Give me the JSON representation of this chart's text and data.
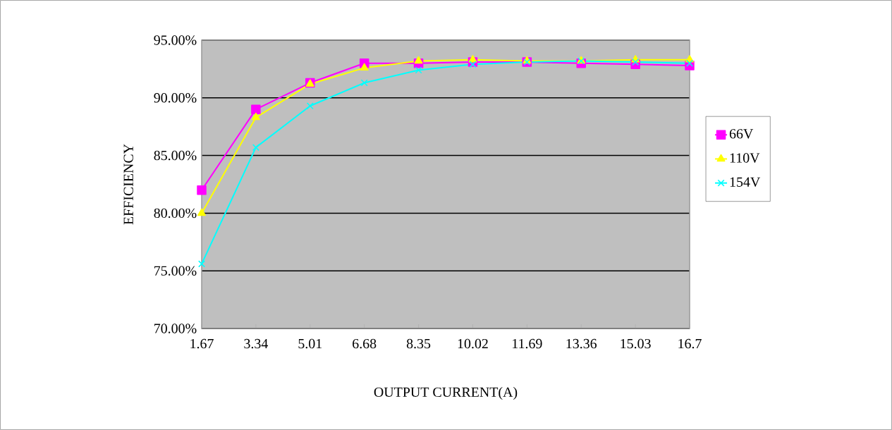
{
  "chart_data": {
    "type": "line",
    "xlabel": "OUTPUT CURRENT(A)",
    "ylabel": "EFFICIENCY",
    "categories": [
      "1.67",
      "3.34",
      "5.01",
      "6.68",
      "8.35",
      "10.02",
      "11.69",
      "13.36",
      "15.03",
      "16.7"
    ],
    "series": [
      {
        "name": "66V",
        "color": "#ff00ff",
        "marker": "square",
        "values": [
          82.0,
          89.0,
          91.3,
          93.0,
          93.0,
          93.1,
          93.1,
          93.0,
          92.9,
          92.8
        ]
      },
      {
        "name": "110V",
        "color": "#ffff00",
        "marker": "triangle",
        "values": [
          80.0,
          88.3,
          91.2,
          92.6,
          93.2,
          93.3,
          93.2,
          93.2,
          93.3,
          93.3
        ]
      },
      {
        "name": "154V",
        "color": "#00ffff",
        "marker": "cross",
        "values": [
          75.6,
          85.7,
          89.3,
          91.3,
          92.4,
          92.9,
          93.1,
          93.2,
          93.1,
          93.0
        ]
      }
    ],
    "ylim": [
      70,
      95
    ],
    "yticks": [
      {
        "value": 70,
        "label": "70.00%"
      },
      {
        "value": 75,
        "label": "75.00%"
      },
      {
        "value": 80,
        "label": "80.00%"
      },
      {
        "value": 85,
        "label": "85.00%"
      },
      {
        "value": 90,
        "label": "90.00%"
      },
      {
        "value": 95,
        "label": "95.00%"
      }
    ],
    "grid": "y",
    "legend": "right"
  }
}
